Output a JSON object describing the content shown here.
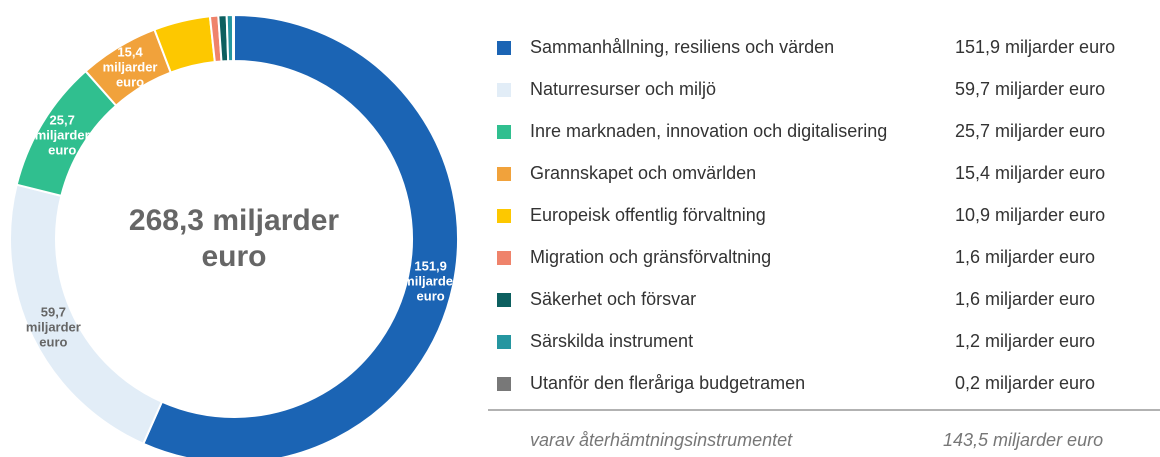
{
  "chart_data": {
    "type": "donut",
    "center_label": "268,3 miljarder euro",
    "categories": [
      "Sammanhållning, resiliens och värden",
      "Naturresurser och miljö",
      "Inre marknaden, innovation och digitalisering",
      "Grannskapet och omvärlden",
      "Europeisk offentlig förvaltning",
      "Migration och gränsförvaltning",
      "Säkerhet och försvar",
      "Särskilda instrument",
      "Utanför den fleråriga budgetramen"
    ],
    "values": [
      151.9,
      59.7,
      25.7,
      15.4,
      10.9,
      1.6,
      1.6,
      1.2,
      0.2
    ],
    "value_labels": [
      "151,9 miljarder euro",
      "59,7 miljarder euro",
      "25,7 miljarder euro",
      "15,4 miljarder euro",
      "10,9 miljarder euro",
      "1,6 miljarder euro",
      "1,6 miljarder euro",
      "1,2 miljarder euro",
      "0,2 miljarder euro"
    ],
    "colors": [
      "#1b64b4",
      "#e2edf7",
      "#30bf8f",
      "#f1a23b",
      "#fdc800",
      "#ef836b",
      "#0c5f5f",
      "#2596a0",
      "#787878"
    ],
    "subtotal": {
      "name": "varav återhämtningsinstrumentet",
      "value": 143.5,
      "value_label": "143,5 miljarder euro"
    }
  }
}
